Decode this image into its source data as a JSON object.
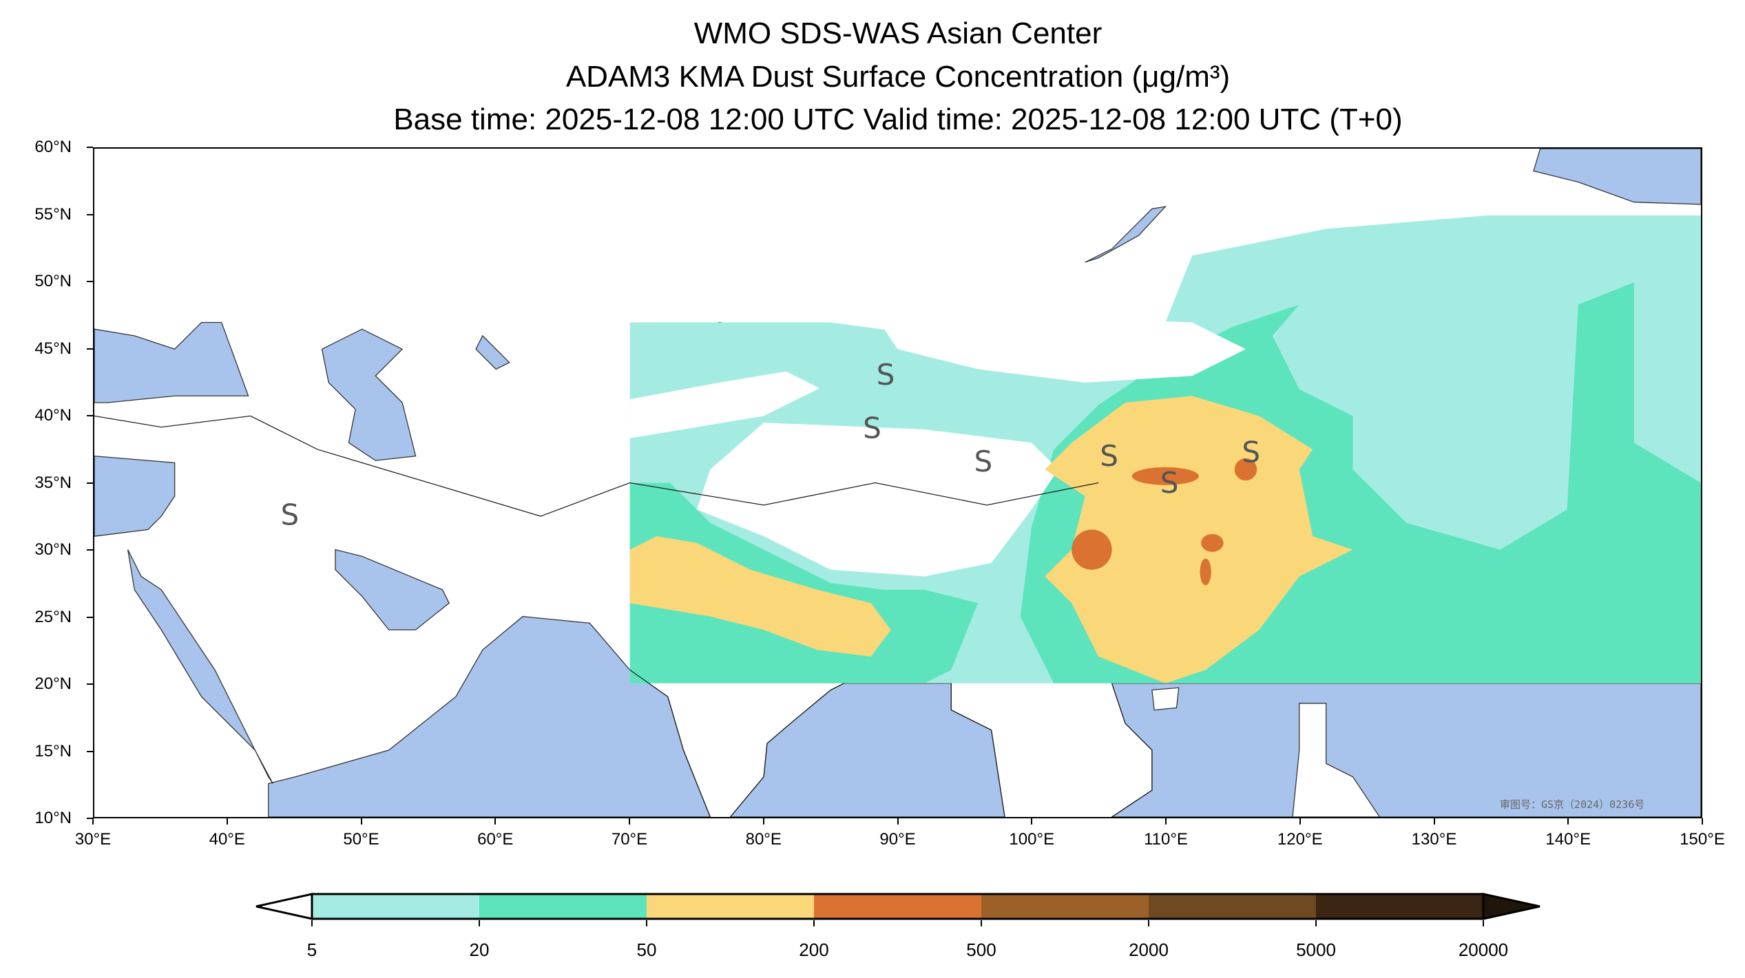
{
  "title": {
    "line1": "WMO SDS-WAS Asian Center",
    "line2": "ADAM3 KMA Dust Surface Concentration (μg/m³)",
    "line3": "Base time: 2025-12-08 12:00 UTC Valid time: 2025-12-08 12:00 UTC (T+0)"
  },
  "map": {
    "lon_range": [
      30,
      150
    ],
    "lat_range": [
      10,
      60
    ],
    "x_ticks": [
      "30°E",
      "40°E",
      "50°E",
      "60°E",
      "70°E",
      "80°E",
      "90°E",
      "100°E",
      "110°E",
      "120°E",
      "130°E",
      "140°E",
      "150°E"
    ],
    "y_ticks": [
      "60°N",
      "55°N",
      "50°N",
      "45°N",
      "40°N",
      "35°N",
      "30°N",
      "25°N",
      "20°N",
      "15°N",
      "10°N"
    ],
    "dust_storm_symbol": "S",
    "watermark": "审图号：GS京（2024）0236号",
    "colors": {
      "ocean": "#a9c4ec",
      "land": "#ffffff"
    }
  },
  "colorbar": {
    "labels": [
      "5",
      "20",
      "50",
      "200",
      "500",
      "2000",
      "5000",
      "20000"
    ],
    "colors": [
      "#a4ece2",
      "#5ee4bd",
      "#fad778",
      "#da7232",
      "#9c6128",
      "#6f4921",
      "#3b2513"
    ],
    "over_color": "#1f150b",
    "extend": "both"
  }
}
